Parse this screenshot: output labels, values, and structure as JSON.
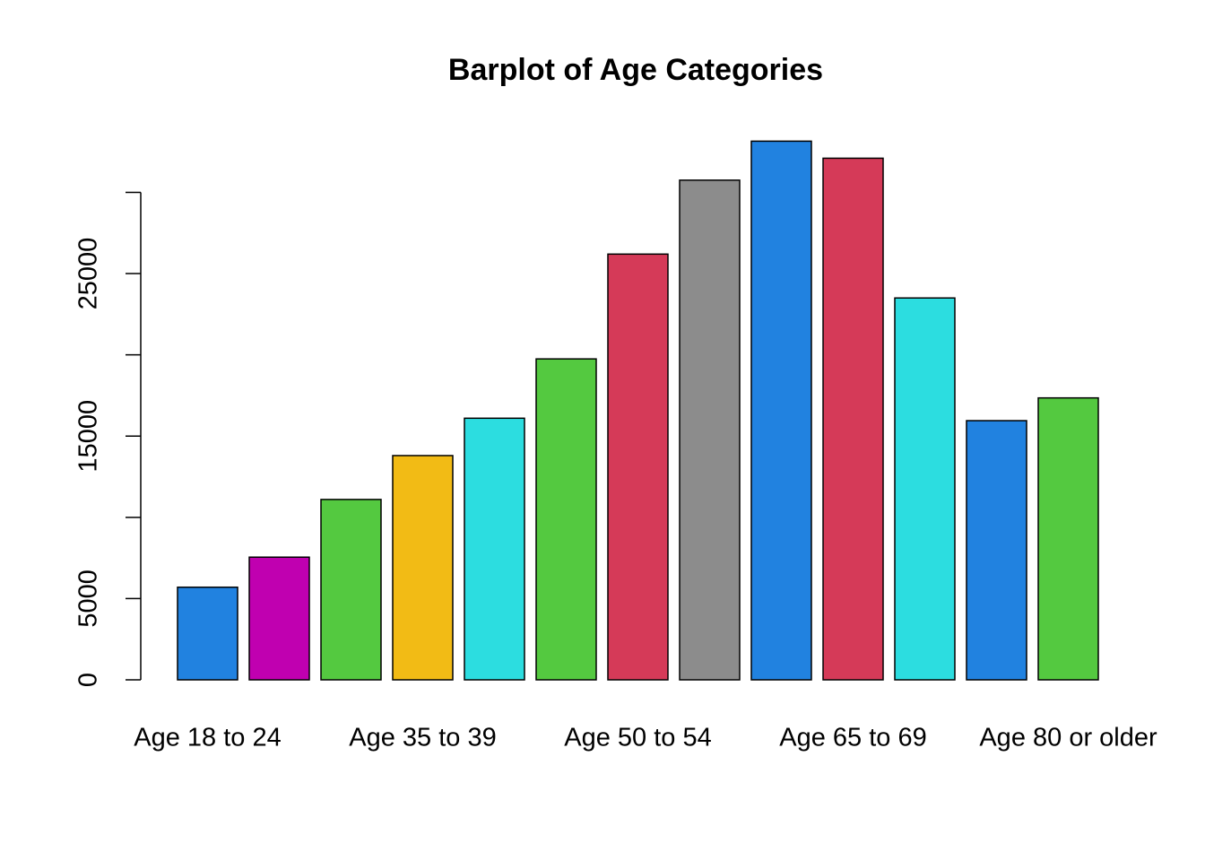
{
  "chart_data": {
    "type": "bar",
    "title": "Barplot of Age Categories",
    "categories": [
      "Age 18 to 24",
      null,
      null,
      "Age 35 to 39",
      null,
      null,
      "Age 50 to 54",
      null,
      null,
      "Age 65 to 69",
      null,
      null,
      "Age 80 or older"
    ],
    "values": [
      5700,
      7550,
      11100,
      13800,
      16100,
      19750,
      26200,
      30750,
      33150,
      32100,
      23500,
      15950,
      17350
    ],
    "colors": [
      "#2182e0",
      "#c000b0",
      "#54c940",
      "#f2bb15",
      "#2cdde0",
      "#54c940",
      "#d53a58",
      "#8c8c8c",
      "#2182e0",
      "#d53a58",
      "#2cdde0",
      "#2182e0",
      "#54c940"
    ],
    "ylim": [
      0,
      34000
    ],
    "yticks": [
      0,
      5000,
      {
        "value": 10000,
        "label": null
      },
      15000,
      {
        "value": 20000,
        "label": null
      },
      25000,
      {
        "value": 30000,
        "label": null
      }
    ]
  }
}
